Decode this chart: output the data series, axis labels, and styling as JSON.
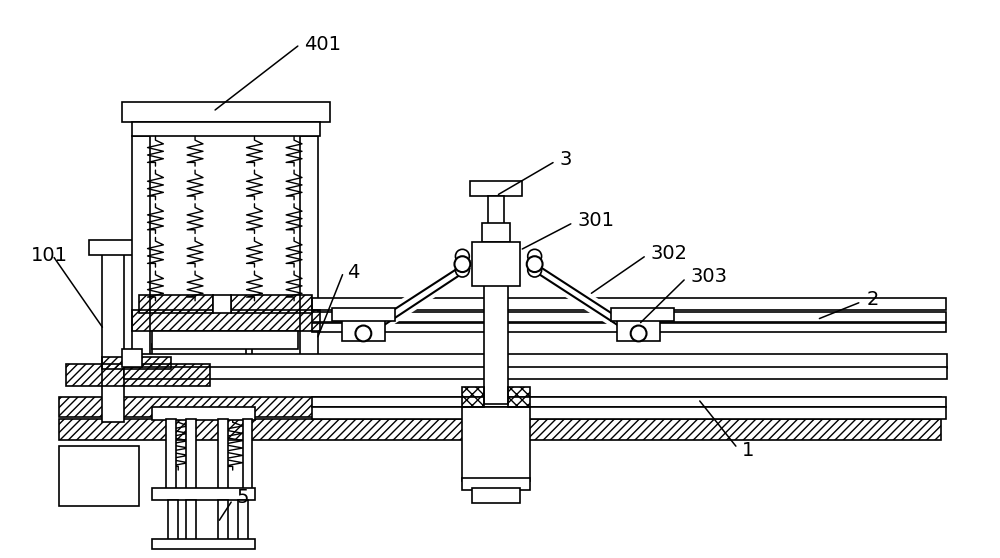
{
  "background_color": "#ffffff",
  "line_color": "#000000",
  "figure_size": [
    10.0,
    5.58
  ],
  "dpi": 100
}
